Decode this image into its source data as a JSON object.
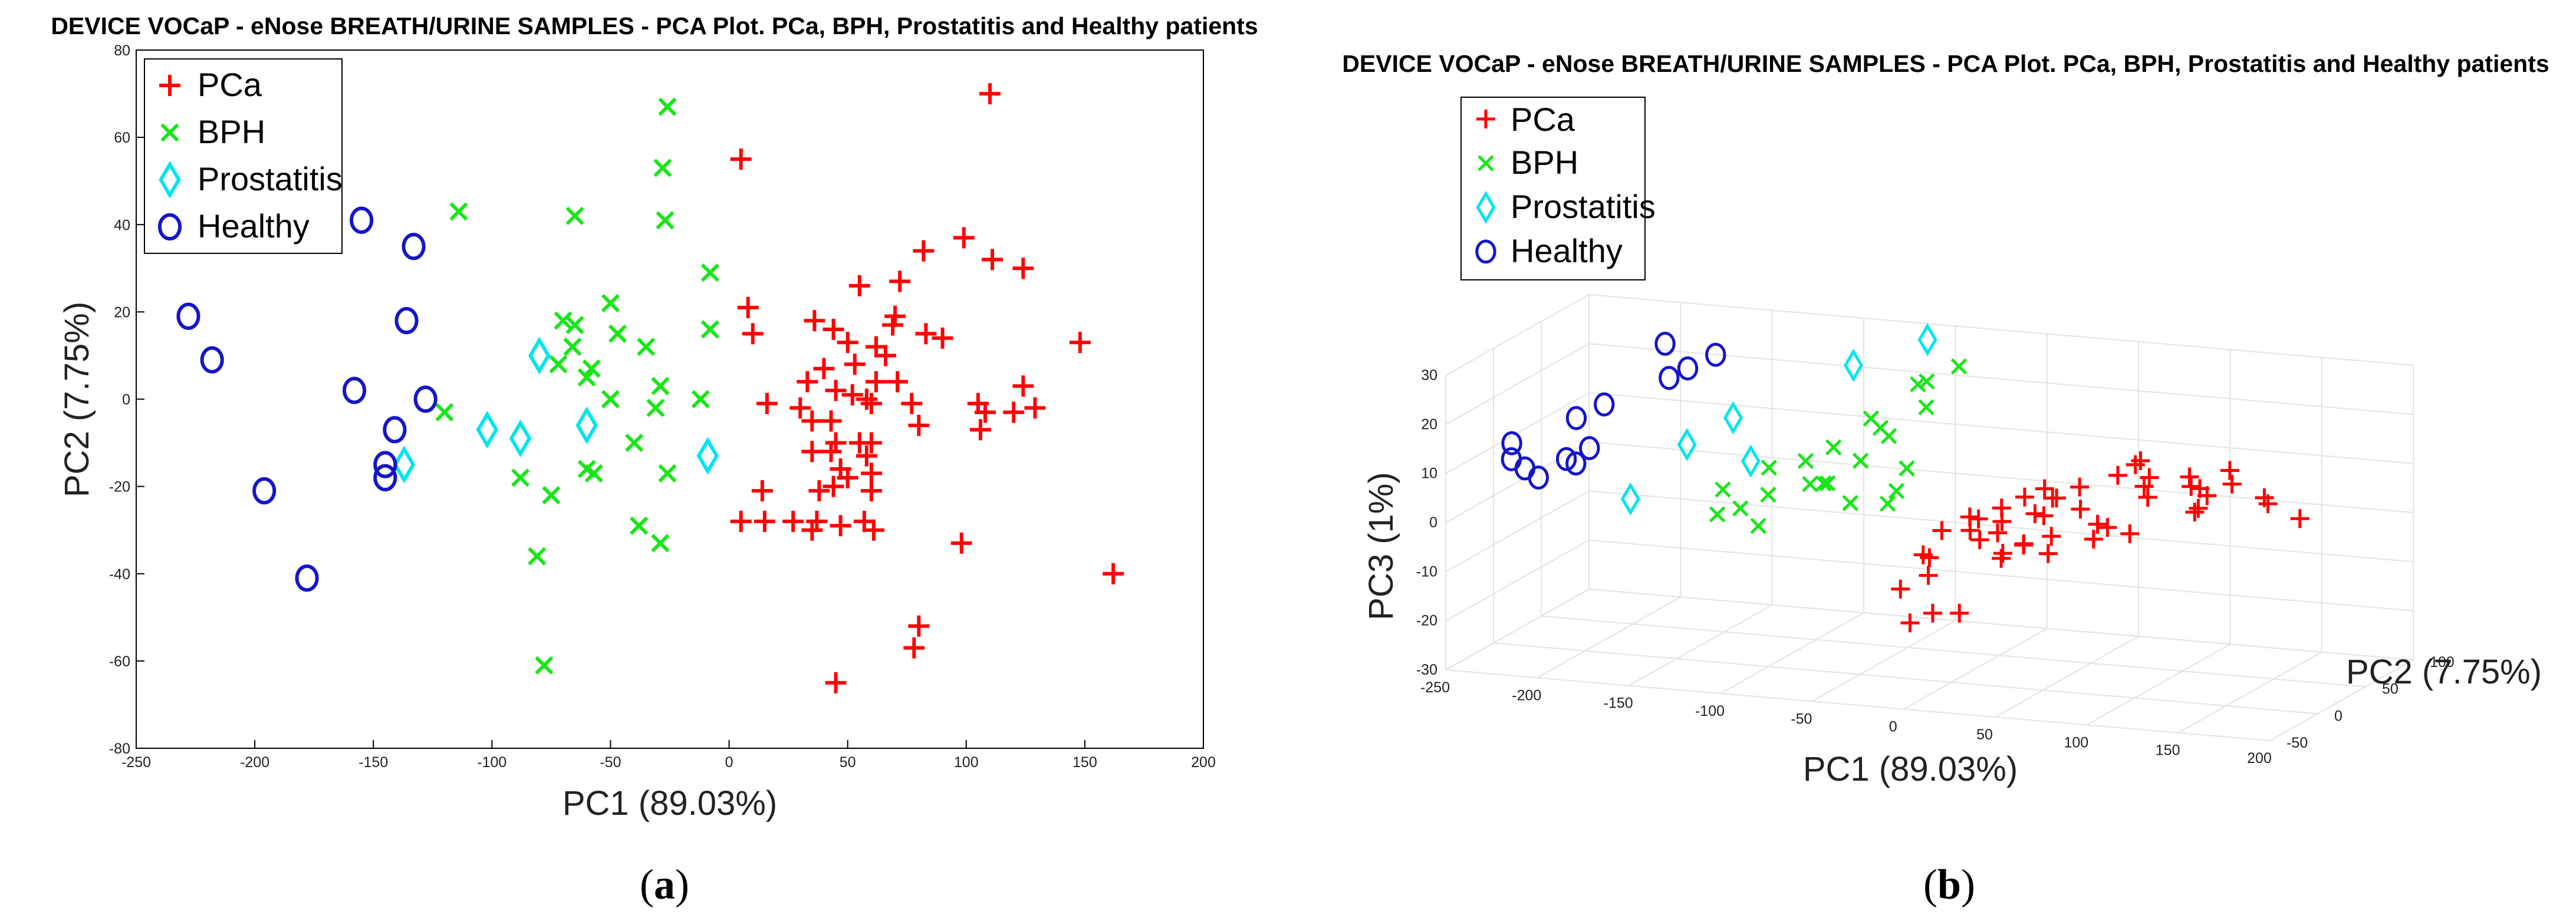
{
  "colors": {
    "pca": "#ff0000",
    "bph": "#19e619",
    "prostatitis": "#00e5ee",
    "healthy": "#1515c8"
  },
  "panels": [
    {
      "label_open": "(",
      "label_letter": "a",
      "label_close": ")",
      "title": "DEVICE VOCaP - eNose BREATH/URINE SAMPLES - PCA Plot. PCa, BPH, Prostatitis and Healthy patients"
    },
    {
      "label_open": "(",
      "label_letter": "b",
      "label_close": ")",
      "title": "DEVICE VOCaP - eNose BREATH/URINE SAMPLES - PCA Plot. PCa, BPH, Prostatitis and Healthy patients"
    }
  ],
  "chart_data": [
    {
      "type": "scatter",
      "title": "DEVICE VOCaP - eNose BREATH/URINE SAMPLES - PCA Plot. PCa, BPH, Prostatitis and Healthy patients",
      "xlabel": "PC1 (89.03%)",
      "ylabel": "PC2 (7.75%)",
      "xlim": [
        -250,
        200
      ],
      "ylim": [
        -80,
        80
      ],
      "xticks": [
        -250,
        -200,
        -150,
        -100,
        -50,
        0,
        50,
        100,
        150,
        200
      ],
      "yticks": [
        -80,
        -60,
        -40,
        -20,
        0,
        20,
        40,
        60,
        80
      ],
      "legend_position": "top-left",
      "series": [
        {
          "name": "PCa",
          "marker": "plus",
          "points": [
            [
              110,
              70
            ],
            [
              5,
              55
            ],
            [
              99,
              37
            ],
            [
              82,
              34
            ],
            [
              124,
              30
            ],
            [
              111,
              32
            ],
            [
              72,
              27
            ],
            [
              70,
              19
            ],
            [
              69,
              17
            ],
            [
              55,
              26
            ],
            [
              8,
              21
            ],
            [
              10,
              15
            ],
            [
              36,
              18
            ],
            [
              44,
              16
            ],
            [
              83,
              15
            ],
            [
              90,
              14
            ],
            [
              148,
              13
            ],
            [
              50,
              13
            ],
            [
              62,
              12
            ],
            [
              53,
              8
            ],
            [
              66,
              10
            ],
            [
              40,
              7
            ],
            [
              62,
              4
            ],
            [
              71,
              4
            ],
            [
              33,
              4
            ],
            [
              124,
              3
            ],
            [
              45,
              2
            ],
            [
              52,
              1
            ],
            [
              58,
              0
            ],
            [
              77,
              -1
            ],
            [
              105,
              -1
            ],
            [
              108,
              -3
            ],
            [
              120,
              -3
            ],
            [
              129,
              -2
            ],
            [
              16,
              -1
            ],
            [
              30,
              -2
            ],
            [
              60,
              -1
            ],
            [
              35,
              -5
            ],
            [
              43,
              -5
            ],
            [
              80,
              -6
            ],
            [
              106,
              -7
            ],
            [
              45,
              -10
            ],
            [
              55,
              -10
            ],
            [
              60,
              -10
            ],
            [
              35,
              -12
            ],
            [
              43,
              -12
            ],
            [
              58,
              -13
            ],
            [
              60,
              -17
            ],
            [
              47,
              -16
            ],
            [
              50,
              -18
            ],
            [
              44,
              -20
            ],
            [
              38,
              -21
            ],
            [
              60,
              -21
            ],
            [
              14,
              -21
            ],
            [
              27,
              -28
            ],
            [
              5,
              -28
            ],
            [
              15,
              -28
            ],
            [
              37,
              -28
            ],
            [
              57,
              -28
            ],
            [
              35,
              -30
            ],
            [
              47,
              -29
            ],
            [
              61,
              -30
            ],
            [
              98,
              -33
            ],
            [
              162,
              -40
            ],
            [
              80,
              -52
            ],
            [
              78,
              -57
            ],
            [
              45,
              -65
            ]
          ]
        },
        {
          "name": "BPH",
          "marker": "x",
          "points": [
            [
              -26,
              67
            ],
            [
              -28,
              53
            ],
            [
              -114,
              43
            ],
            [
              -65,
              42
            ],
            [
              -27,
              41
            ],
            [
              -8,
              29
            ],
            [
              -70,
              18
            ],
            [
              -50,
              22
            ],
            [
              -47,
              15
            ],
            [
              -65,
              17
            ],
            [
              -66,
              12
            ],
            [
              -72,
              8
            ],
            [
              -35,
              12
            ],
            [
              -8,
              16
            ],
            [
              -58,
              7
            ],
            [
              -60,
              5
            ],
            [
              -29,
              3
            ],
            [
              -50,
              0
            ],
            [
              -12,
              0
            ],
            [
              -31,
              -2
            ],
            [
              -120,
              -3
            ],
            [
              -40,
              -10
            ],
            [
              -60,
              -16
            ],
            [
              -57,
              -17
            ],
            [
              -26,
              -17
            ],
            [
              -88,
              -18
            ],
            [
              -75,
              -22
            ],
            [
              -38,
              -29
            ],
            [
              -29,
              -33
            ],
            [
              -81,
              -36
            ],
            [
              -78,
              -61
            ]
          ]
        },
        {
          "name": "Prostatitis",
          "marker": "diamond",
          "points": [
            [
              -80,
              10
            ],
            [
              -60,
              -6
            ],
            [
              -102,
              -7
            ],
            [
              -88,
              -9
            ],
            [
              -137,
              -15
            ],
            [
              -9,
              -13
            ]
          ]
        },
        {
          "name": "Healthy",
          "marker": "circle",
          "points": [
            [
              -155,
              41
            ],
            [
              -133,
              35
            ],
            [
              -228,
              19
            ],
            [
              -136,
              18
            ],
            [
              -218,
              9
            ],
            [
              -158,
              2
            ],
            [
              -128,
              0
            ],
            [
              -141,
              -7
            ],
            [
              -145,
              -15
            ],
            [
              -145,
              -18
            ],
            [
              -196,
              -21
            ],
            [
              -178,
              -41
            ]
          ]
        }
      ]
    },
    {
      "type": "scatter",
      "title": "DEVICE VOCaP - eNose BREATH/URINE SAMPLES - PCA Plot. PCa, BPH, Prostatitis and Healthy patients",
      "projection": "3d",
      "xlabel": "PC1 (89.03%)",
      "ylabel": "PC2 (7.75%)",
      "zlabel": "PC3 (1%)",
      "xlim": [
        -250,
        200
      ],
      "ylim": [
        -50,
        100
      ],
      "zlim": [
        -30,
        30
      ],
      "xticks": [
        -250,
        -200,
        -150,
        -100,
        -50,
        0,
        50,
        100,
        150,
        200
      ],
      "yticks": [
        -50,
        0,
        50,
        100
      ],
      "zticks": [
        -30,
        -20,
        -10,
        0,
        10,
        20,
        30
      ],
      "legend_position": "top-left",
      "series": [
        {
          "name": "PCa",
          "marker": "plus",
          "points": [
            [
              130,
              0,
              16
            ],
            [
              148,
              10,
              14
            ],
            [
              152,
              0,
              18
            ],
            [
              165,
              15,
              10
            ],
            [
              172,
              35,
              5
            ],
            [
              150,
              40,
              8
            ],
            [
              120,
              30,
              10
            ],
            [
              100,
              10,
              12
            ],
            [
              90,
              20,
              15
            ],
            [
              70,
              0,
              12
            ],
            [
              60,
              -5,
              10
            ],
            [
              50,
              10,
              8
            ],
            [
              40,
              0,
              9
            ],
            [
              30,
              -5,
              7
            ],
            [
              60,
              20,
              5
            ],
            [
              80,
              10,
              3
            ],
            [
              40,
              20,
              3
            ],
            [
              20,
              -10,
              5
            ],
            [
              30,
              30,
              2
            ],
            [
              50,
              -20,
              2
            ],
            [
              10,
              0,
              4
            ],
            [
              0,
              -10,
              2
            ],
            [
              -5,
              -20,
              -2
            ],
            [
              20,
              10,
              0
            ],
            [
              5,
              20,
              -3
            ],
            [
              -10,
              -5,
              -8
            ],
            [
              -20,
              -15,
              -10
            ],
            [
              20,
              -30,
              -12
            ],
            [
              -5,
              -10,
              -15
            ],
            [
              -20,
              -5,
              -18
            ],
            [
              95,
              25,
              12
            ],
            [
              110,
              40,
              9
            ],
            [
              85,
              -10,
              6
            ],
            [
              65,
              -20,
              4
            ],
            [
              45,
              15,
              -4
            ],
            [
              35,
              -15,
              -2
            ],
            [
              75,
              5,
              1
            ],
            [
              100,
              -5,
              4
            ],
            [
              125,
              15,
              7
            ],
            [
              140,
              -10,
              11
            ],
            [
              55,
              -30,
              3
            ],
            [
              15,
              25,
              -6
            ],
            [
              -12,
              0,
              -5
            ],
            [
              30,
              40,
              6
            ],
            [
              70,
              40,
              10
            ],
            [
              85,
              35,
              14
            ],
            [
              115,
              -15,
              13
            ],
            [
              150,
              -20,
              15
            ],
            [
              25,
              5,
              3
            ],
            [
              5,
              10,
              0
            ]
          ]
        },
        {
          "name": "BPH",
          "marker": "x",
          "points": [
            [
              -60,
              80,
              20
            ],
            [
              -50,
              70,
              22
            ],
            [
              -35,
              75,
              25
            ],
            [
              -45,
              60,
              18
            ],
            [
              -70,
              50,
              16
            ],
            [
              -55,
              40,
              14
            ],
            [
              -80,
              30,
              12
            ],
            [
              -90,
              20,
              10
            ],
            [
              -60,
              20,
              11
            ],
            [
              -40,
              30,
              9
            ],
            [
              -75,
              10,
              7
            ],
            [
              -100,
              0,
              5
            ],
            [
              -110,
              -10,
              3
            ],
            [
              -120,
              -15,
              2
            ],
            [
              -95,
              -20,
              1
            ],
            [
              -50,
              -10,
              6
            ],
            [
              -30,
              0,
              8
            ],
            [
              -65,
              -5,
              9
            ],
            [
              -85,
              15,
              6
            ],
            [
              -40,
              10,
              4
            ],
            [
              -110,
              20,
              8
            ],
            [
              -130,
              10,
              4
            ],
            [
              -70,
              60,
              13
            ]
          ]
        },
        {
          "name": "Prostatitis",
          "marker": "diamond",
          "points": [
            [
              -60,
              90,
              28
            ],
            [
              -90,
              70,
              24
            ],
            [
              -140,
              40,
              15
            ],
            [
              -160,
              30,
              10
            ],
            [
              -120,
              20,
              9
            ],
            [
              -170,
              -10,
              3
            ]
          ]
        },
        {
          "name": "Healthy",
          "marker": "circle",
          "points": [
            [
              -185,
              55,
              27
            ],
            [
              -160,
              60,
              25
            ],
            [
              -170,
              50,
              23
            ],
            [
              -175,
              40,
              22
            ],
            [
              -200,
              20,
              18
            ],
            [
              -210,
              10,
              16
            ],
            [
              -240,
              0,
              11
            ],
            [
              -235,
              -10,
              9
            ],
            [
              -225,
              -15,
              8
            ],
            [
              -215,
              -20,
              7
            ],
            [
              -205,
              -10,
              10
            ],
            [
              -195,
              -5,
              12
            ],
            [
              -205,
              0,
              8
            ]
          ]
        }
      ]
    }
  ]
}
